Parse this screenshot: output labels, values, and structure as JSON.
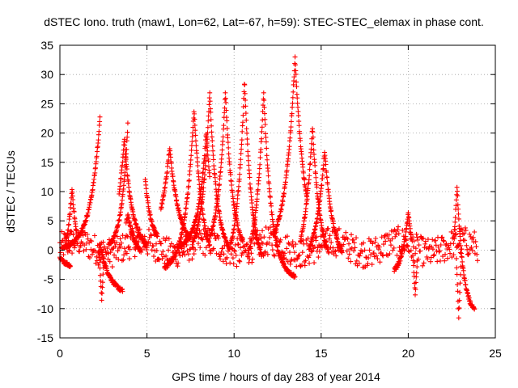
{
  "chart_data": {
    "type": "scatter",
    "title": "dSTEC Iono. truth (maw1, Lon=62, Lat=-67, h=59): STEC-STEC_elemax in phase cont.",
    "xlabel": "GPS time / hours of day 283 of year 2014",
    "ylabel": "dSTEC  / TECUs",
    "xlim": [
      0,
      25
    ],
    "ylim": [
      -15,
      35
    ],
    "xticks": [
      0,
      5,
      10,
      15,
      20,
      25
    ],
    "yticks": [
      -15,
      -10,
      -5,
      0,
      5,
      10,
      15,
      20,
      25,
      30,
      35
    ],
    "grid": true,
    "marker": "+",
    "color": "#ff0000",
    "arcs": [
      {
        "name": "arc-01",
        "t0": 0.0,
        "t1": 0.6,
        "peak_t": 0.0,
        "peak": -1.5,
        "width": 1.5,
        "end": -5.0
      },
      {
        "name": "arc-02",
        "t0": 0.1,
        "t1": 2.3,
        "peak_t": 2.3,
        "peak": 22.5,
        "width": 0.55,
        "end": 0.0
      },
      {
        "name": "arc-03",
        "t0": 2.2,
        "t1": 3.6,
        "peak_t": 2.3,
        "peak": 1.0,
        "width": 0.6,
        "end": -8.0
      },
      {
        "name": "arc-04",
        "t0": 0.3,
        "t1": 1.0,
        "peak_t": 0.7,
        "peak": 10.5,
        "width": 0.35,
        "end": -4.0
      },
      {
        "name": "arc-05",
        "t0": 2.8,
        "t1": 3.9,
        "peak_t": 3.9,
        "peak": 21.5,
        "width": 0.35,
        "end": 0.0
      },
      {
        "name": "arc-06",
        "t0": 3.8,
        "t1": 4.6,
        "peak_t": 3.9,
        "peak": 6.0,
        "width": 0.5,
        "end": -2.0
      },
      {
        "name": "arc-07",
        "t0": 3.4,
        "t1": 5.0,
        "peak_t": 3.7,
        "peak": 19.0,
        "width": 0.45,
        "end": 0.0
      },
      {
        "name": "arc-08",
        "t0": 4.9,
        "t1": 5.6,
        "peak_t": 4.9,
        "peak": 12.0,
        "width": 0.35,
        "end": 1.0
      },
      {
        "name": "arc-09",
        "t0": 5.8,
        "t1": 7.5,
        "peak_t": 6.3,
        "peak": 17.5,
        "width": 0.55,
        "end": 0.0
      },
      {
        "name": "arc-10",
        "t0": 6.0,
        "t1": 8.6,
        "peak_t": 7.7,
        "peak": 24.0,
        "width": 0.5,
        "end": -4.0
      },
      {
        "name": "arc-11",
        "t0": 6.8,
        "t1": 8.6,
        "peak_t": 8.4,
        "peak": 20.0,
        "width": 0.45,
        "end": 0.0
      },
      {
        "name": "arc-12",
        "t0": 7.6,
        "t1": 9.7,
        "peak_t": 8.6,
        "peak": 27.0,
        "width": 0.42,
        "end": -1.5
      },
      {
        "name": "arc-13",
        "t0": 8.6,
        "t1": 10.5,
        "peak_t": 9.5,
        "peak": 27.0,
        "width": 0.42,
        "end": -1.0
      },
      {
        "name": "arc-14",
        "t0": 9.8,
        "t1": 11.6,
        "peak_t": 10.6,
        "peak": 29.0,
        "width": 0.42,
        "end": -4.0
      },
      {
        "name": "arc-15",
        "t0": 10.8,
        "t1": 13.5,
        "peak_t": 11.7,
        "peak": 27.0,
        "width": 0.45,
        "end": -5.0
      },
      {
        "name": "arc-16",
        "t0": 12.3,
        "t1": 14.2,
        "peak_t": 13.5,
        "peak": 33.0,
        "width": 0.55,
        "end": -1.0
      },
      {
        "name": "arc-17",
        "t0": 13.8,
        "t1": 15.4,
        "peak_t": 14.5,
        "peak": 21.0,
        "width": 0.45,
        "end": -3.5
      },
      {
        "name": "arc-18",
        "t0": 14.3,
        "t1": 16.2,
        "peak_t": 15.2,
        "peak": 17.0,
        "width": 0.5,
        "end": -3.0
      },
      {
        "name": "arc-19",
        "t0": 19.2,
        "t1": 20.2,
        "peak_t": 20.0,
        "peak": 6.5,
        "width": 0.35,
        "end": -4.5
      },
      {
        "name": "arc-20",
        "t0": 22.6,
        "t1": 23.8,
        "peak_t": 22.8,
        "peak": 11.0,
        "width": 0.35,
        "end": -11.5
      }
    ],
    "noise_band": {
      "t0": 0.0,
      "t1": 24.0,
      "center": 0.5,
      "spread": 2.5
    },
    "dips": [
      {
        "t": 2.4,
        "value": -8.5
      },
      {
        "t": 20.4,
        "value": -7.5
      },
      {
        "t": 22.9,
        "value": -11.5
      }
    ]
  }
}
